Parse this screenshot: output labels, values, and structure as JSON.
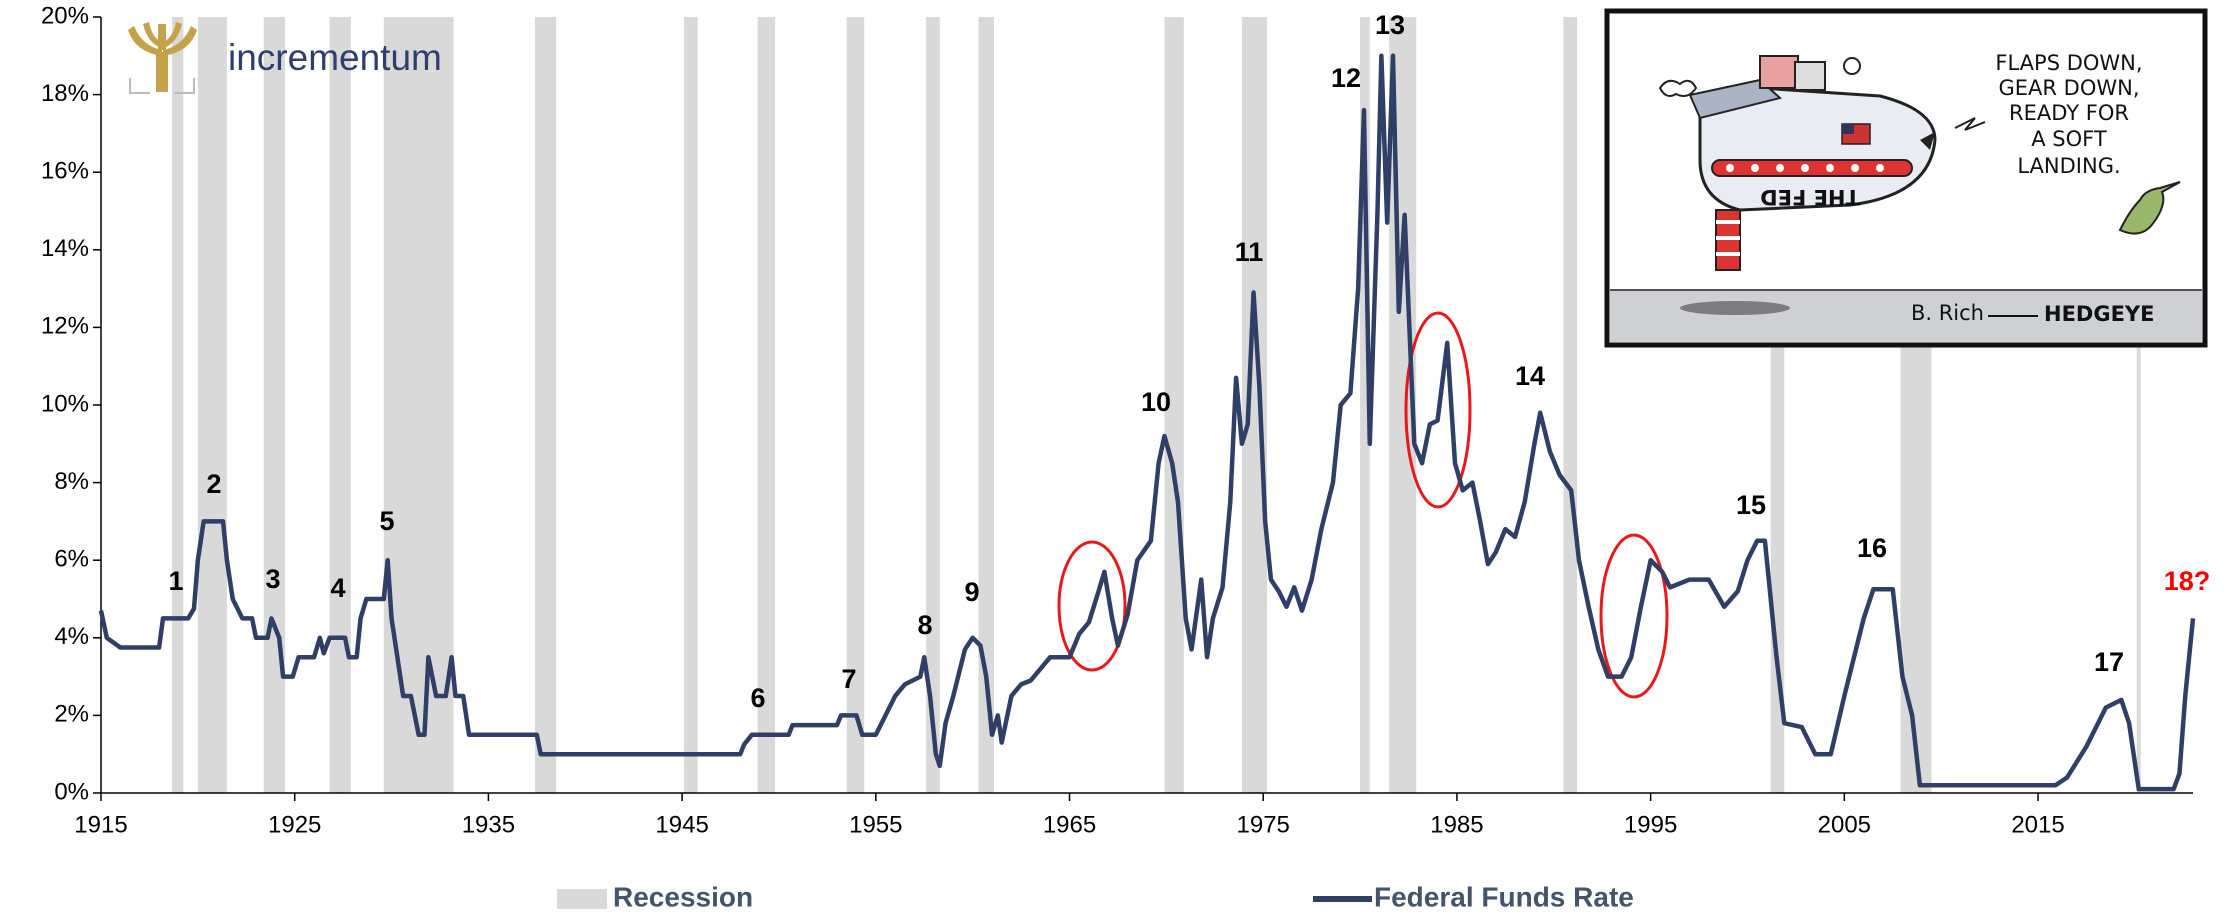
{
  "logo": "incrementum",
  "cartoon": {
    "speech": [
      "FLAPS DOWN,",
      "GEAR DOWN,",
      "READY FOR",
      "A SOFT",
      "LANDING."
    ],
    "plane_label": "THE FED",
    "signature": "B. Rich",
    "brand": "HEDGEYE"
  },
  "chart_data": {
    "type": "line",
    "x": [
      1915,
      1915.3,
      1916,
      1918,
      1918.2,
      1919.5,
      1919.8,
      1920,
      1920.3,
      1921.3,
      1921.5,
      1921.8,
      1922.3,
      1922.8,
      1923,
      1923.6,
      1923.8,
      1924.2,
      1924.4,
      1924.9,
      1925.2,
      1926,
      1926.3,
      1926.5,
      1926.8,
      1927.6,
      1927.8,
      1928.2,
      1928.4,
      1928.7,
      1929.6,
      1929.8,
      1930,
      1930.3,
      1930.6,
      1931,
      1931.4,
      1931.7,
      1931.9,
      1932.3,
      1932.8,
      1933.1,
      1933.3,
      1933.7,
      1934,
      1937.5,
      1937.7,
      1948,
      1948.2,
      1948.6,
      1950.5,
      1950.7,
      1953,
      1953.2,
      1954,
      1954.3,
      1955,
      1955.5,
      1956,
      1956.5,
      1957.3,
      1957.5,
      1957.8,
      1958.1,
      1958.3,
      1958.6,
      1959,
      1959.6,
      1960,
      1960.4,
      1960.7,
      1961,
      1961.3,
      1961.5,
      1962,
      1962.5,
      1963,
      1963.5,
      1964,
      1965,
      1965.5,
      1966,
      1966.5,
      1966.8,
      1967.2,
      1967.5,
      1968,
      1968.5,
      1969.2,
      1969.6,
      1969.9,
      1970.3,
      1970.6,
      1971,
      1971.3,
      1971.8,
      1972.1,
      1972.4,
      1972.9,
      1973.3,
      1973.6,
      1973.9,
      1974.2,
      1974.5,
      1974.8,
      1975.1,
      1975.4,
      1975.8,
      1976.2,
      1976.6,
      1977,
      1977.5,
      1978,
      1978.6,
      1979,
      1979.5,
      1979.9,
      1980.2,
      1980.5,
      1980.9,
      1981.1,
      1981.4,
      1981.7,
      1982,
      1982.3,
      1982.8,
      1983.2,
      1983.6,
      1984,
      1984.5,
      1984.9,
      1985.3,
      1985.8,
      1986.2,
      1986.6,
      1987,
      1987.5,
      1988,
      1988.5,
      1989,
      1989.3,
      1989.8,
      1990.3,
      1990.9,
      1991.3,
      1991.8,
      1992.3,
      1992.8,
      1993.5,
      1994,
      1994.5,
      1995,
      1995.6,
      1996,
      1997,
      1998,
      1998.8,
      1999.5,
      2000,
      2000.5,
      2000.9,
      2001.5,
      2001.9,
      2002.8,
      2003.5,
      2004.3,
      2005,
      2006,
      2006.5,
      2007.5,
      2008,
      2008.5,
      2008.9,
      2015.9,
      2016.5,
      2017.5,
      2018.5,
      2019.3,
      2019.7,
      2020.2,
      2022,
      2022.3,
      2022.6,
      2023
    ],
    "series": [
      {
        "name": "Federal Funds Rate",
        "color": "#2f3f66",
        "values": [
          4.7,
          4.0,
          3.75,
          3.75,
          4.5,
          4.5,
          4.75,
          6.0,
          7.0,
          7.0,
          6.0,
          5.0,
          4.5,
          4.5,
          4.0,
          4.0,
          4.5,
          4.0,
          3.0,
          3.0,
          3.5,
          3.5,
          4.0,
          3.6,
          4.0,
          4.0,
          3.5,
          3.5,
          4.5,
          5.0,
          5.0,
          6.0,
          4.5,
          3.5,
          2.5,
          2.5,
          1.5,
          1.5,
          3.5,
          2.5,
          2.5,
          3.5,
          2.5,
          2.5,
          1.5,
          1.5,
          1.0,
          1.0,
          1.25,
          1.5,
          1.5,
          1.75,
          1.75,
          2.0,
          2.0,
          1.5,
          1.5,
          2.0,
          2.5,
          2.8,
          3.0,
          3.5,
          2.5,
          1.0,
          0.7,
          1.8,
          2.5,
          3.7,
          4.0,
          3.8,
          3.0,
          1.5,
          2.0,
          1.3,
          2.5,
          2.8,
          2.9,
          3.2,
          3.5,
          3.5,
          4.1,
          4.4,
          5.2,
          5.7,
          4.5,
          3.8,
          4.6,
          6.0,
          6.5,
          8.5,
          9.2,
          8.5,
          7.5,
          4.5,
          3.7,
          5.5,
          3.5,
          4.5,
          5.3,
          7.5,
          10.7,
          9.0,
          9.5,
          12.9,
          10.5,
          7.0,
          5.5,
          5.2,
          4.8,
          5.3,
          4.7,
          5.5,
          6.8,
          8.0,
          10.0,
          10.3,
          13.0,
          17.6,
          9.0,
          15.0,
          19.0,
          14.7,
          19.0,
          12.4,
          14.9,
          9.0,
          8.5,
          9.5,
          9.6,
          11.6,
          8.5,
          7.8,
          8.0,
          7.0,
          5.9,
          6.2,
          6.8,
          6.6,
          7.5,
          9.0,
          9.8,
          8.8,
          8.2,
          7.8,
          6.0,
          4.8,
          3.7,
          3.0,
          3.0,
          3.5,
          4.8,
          6.0,
          5.7,
          5.3,
          5.5,
          5.5,
          4.8,
          5.2,
          6.0,
          6.5,
          6.5,
          3.5,
          1.8,
          1.7,
          1.0,
          1.0,
          2.5,
          4.5,
          5.25,
          5.25,
          3.0,
          2.0,
          0.2,
          0.2,
          0.4,
          1.2,
          2.2,
          2.4,
          1.8,
          0.1,
          0.1,
          0.5,
          2.5,
          4.5
        ]
      }
    ],
    "recessions": {
      "name": "Recession",
      "color": "#d9d9d9",
      "ranges": [
        [
          1918.67,
          1919.25
        ],
        [
          1920.0,
          1921.5
        ],
        [
          1923.4,
          1924.5
        ],
        [
          1926.8,
          1927.9
        ],
        [
          1929.6,
          1933.2
        ],
        [
          1937.4,
          1938.5
        ],
        [
          1945.1,
          1945.8
        ],
        [
          1948.9,
          1949.8
        ],
        [
          1953.5,
          1954.4
        ],
        [
          1957.6,
          1958.3
        ],
        [
          1960.3,
          1961.1
        ],
        [
          1969.9,
          1970.9
        ],
        [
          1973.9,
          1975.2
        ],
        [
          1980.0,
          1980.5
        ],
        [
          1981.5,
          1982.9
        ],
        [
          1990.5,
          1991.2
        ],
        [
          2001.2,
          2001.9
        ],
        [
          2007.9,
          2009.5
        ],
        [
          2020.1,
          2020.3
        ]
      ]
    },
    "annotations": [
      {
        "text": "1"
      },
      {
        "text": "2"
      },
      {
        "text": "3"
      },
      {
        "text": "4"
      },
      {
        "text": "5"
      },
      {
        "text": "6"
      },
      {
        "text": "7"
      },
      {
        "text": "8"
      },
      {
        "text": "9"
      },
      {
        "text": "10"
      },
      {
        "text": "11"
      },
      {
        "text": "12"
      },
      {
        "text": "13"
      },
      {
        "text": "14"
      },
      {
        "text": "15"
      },
      {
        "text": "16"
      },
      {
        "text": "17"
      },
      {
        "text": "18?",
        "color": "#ff0000"
      }
    ],
    "xlim": [
      1915,
      2023
    ],
    "xticks": [
      1915,
      1925,
      1935,
      1945,
      1955,
      1965,
      1975,
      1985,
      1995,
      2005,
      2015
    ],
    "ylim": [
      0,
      20
    ],
    "yticks": [
      {
        "value": 0,
        "label": "0%"
      },
      {
        "value": 2,
        "label": "2%"
      },
      {
        "value": 4,
        "label": "4%"
      },
      {
        "value": 6,
        "label": "6%"
      },
      {
        "value": 8,
        "label": "8%"
      },
      {
        "value": 10,
        "label": "10%"
      },
      {
        "value": 12,
        "label": "12%"
      },
      {
        "value": 14,
        "label": "14%"
      },
      {
        "value": 16,
        "label": "16%"
      },
      {
        "value": 18,
        "label": "18%"
      },
      {
        "value": 20,
        "label": "20%"
      }
    ],
    "grid": false
  }
}
